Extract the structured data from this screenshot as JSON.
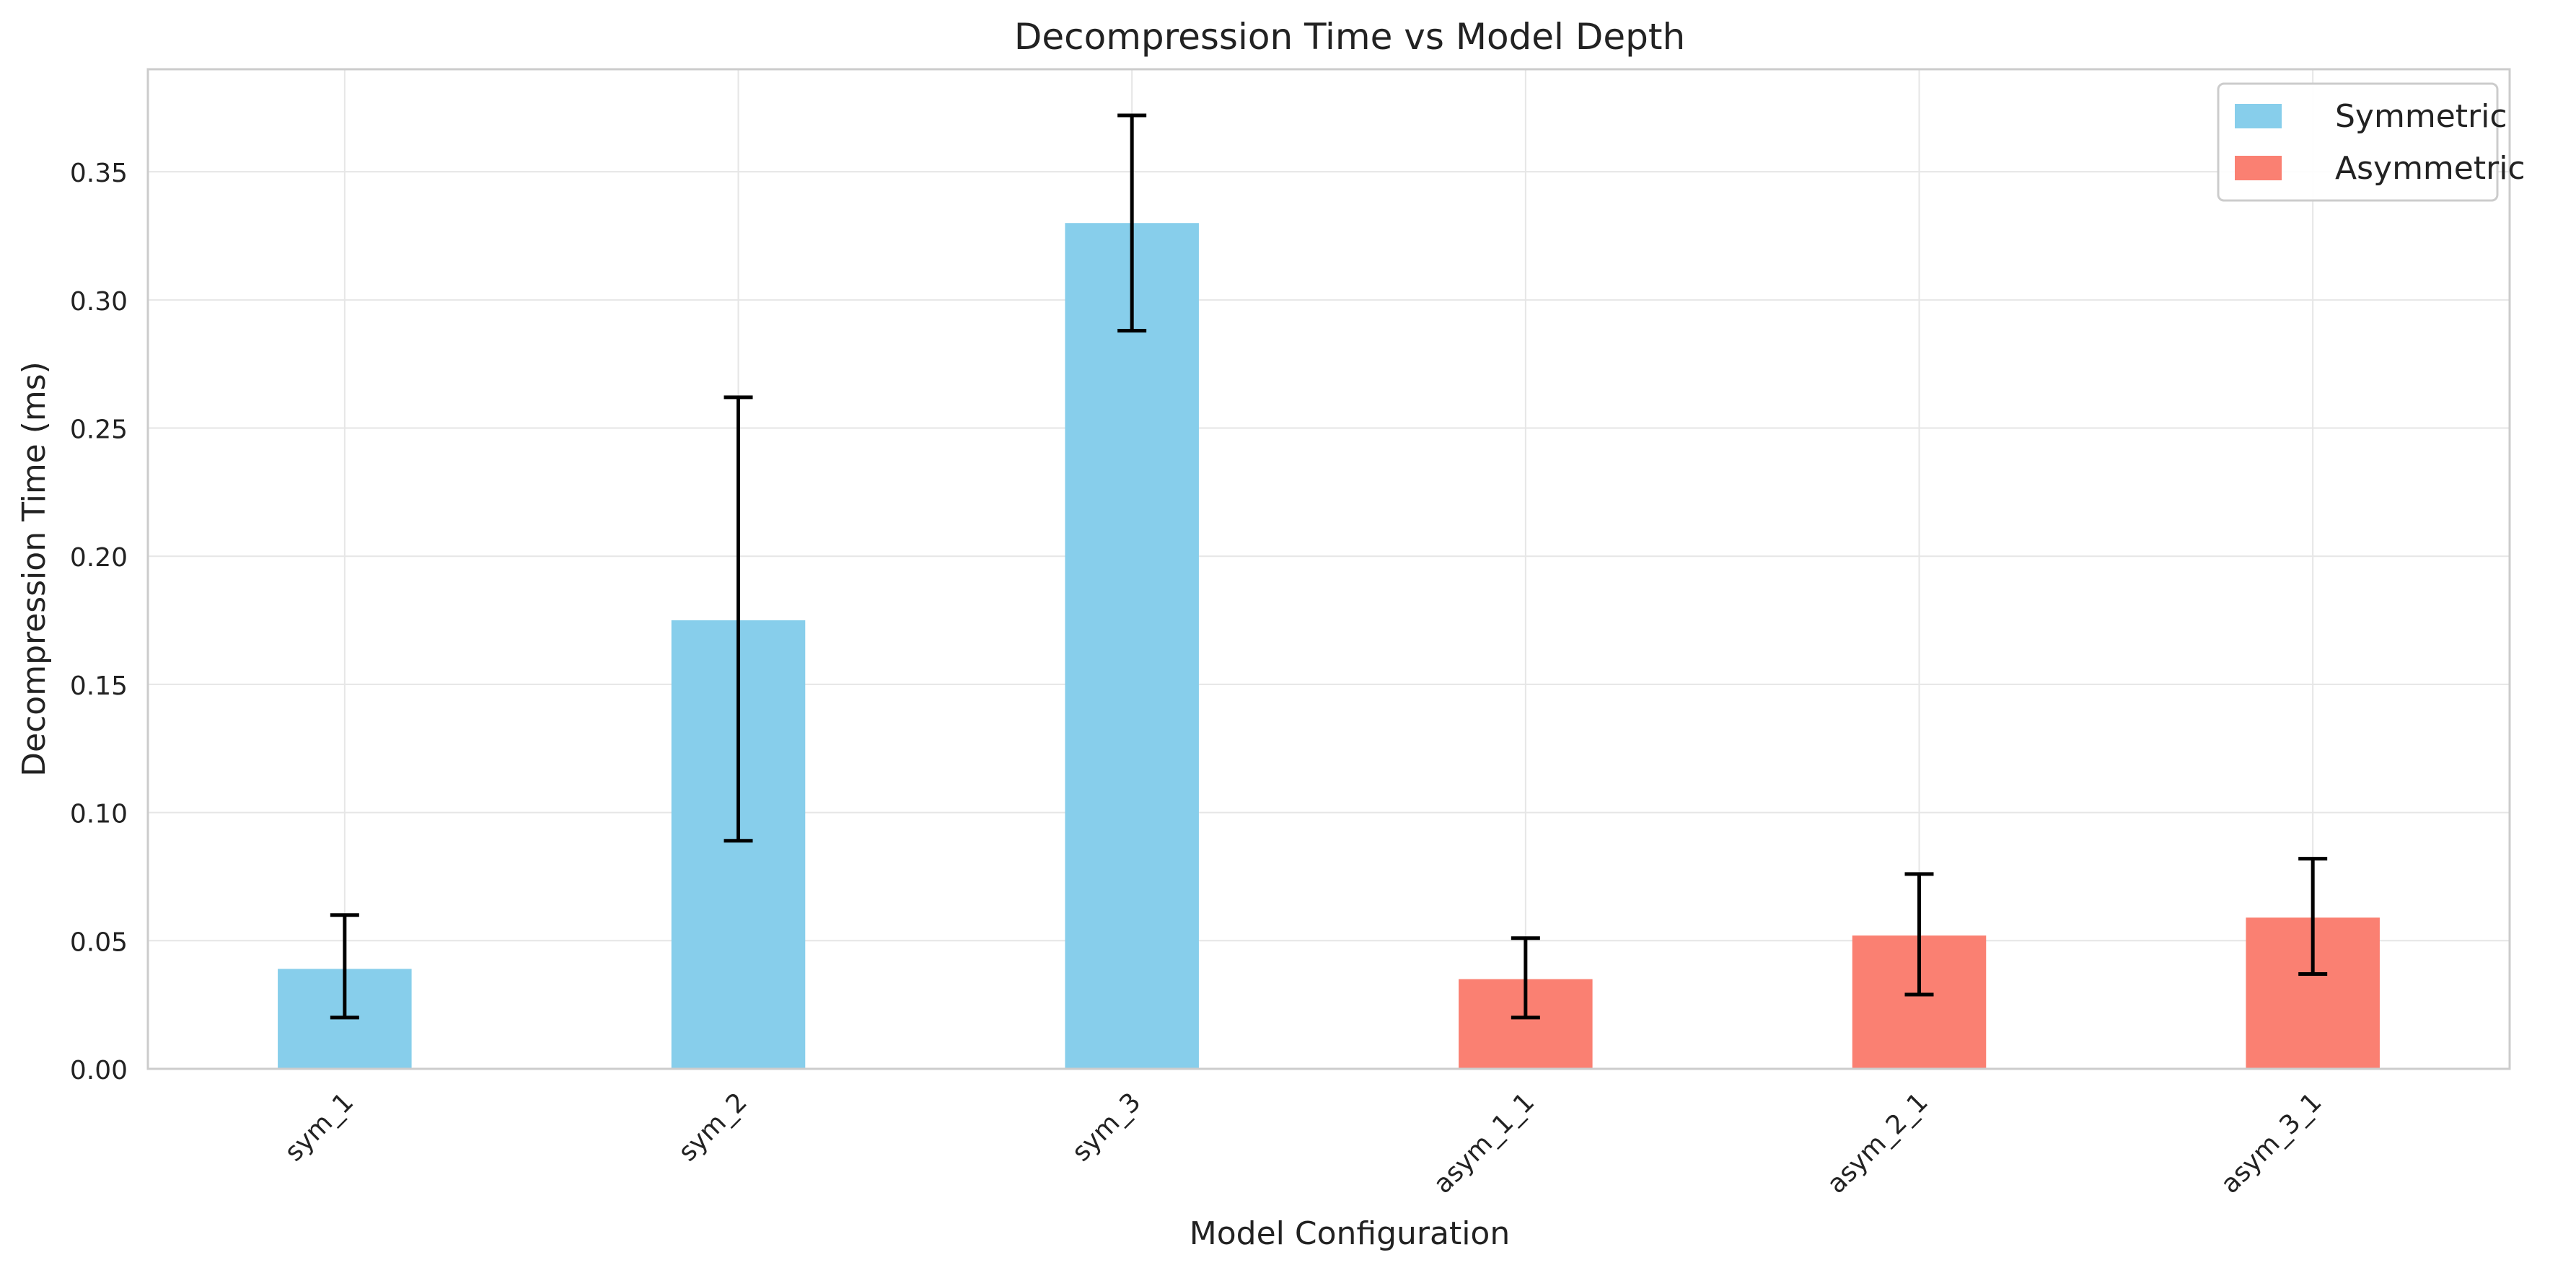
{
  "chart_data": {
    "type": "bar",
    "title": "Decompression Time vs Model Depth",
    "xlabel": "Model Configuration",
    "ylabel": "Decompression Time (ms)",
    "categories": [
      "sym_1",
      "sym_2",
      "sym_3",
      "asym_1_1",
      "asym_2_1",
      "asym_3_1"
    ],
    "values": [
      0.039,
      0.175,
      0.33,
      0.035,
      0.052,
      0.059
    ],
    "error_low": [
      0.02,
      0.089,
      0.288,
      0.02,
      0.029,
      0.037
    ],
    "error_high": [
      0.06,
      0.262,
      0.372,
      0.051,
      0.076,
      0.082
    ],
    "bar_groups": [
      "Symmetric",
      "Symmetric",
      "Symmetric",
      "Asymmetric",
      "Asymmetric",
      "Asymmetric"
    ],
    "legend": [
      {
        "name": "Symmetric",
        "color": "#87CEEB"
      },
      {
        "name": "Asymmetric",
        "color": "#FA8072"
      }
    ],
    "legend_position": "top-right",
    "ylim": [
      0,
      0.39
    ],
    "yticks": [
      0.0,
      0.05,
      0.1,
      0.15,
      0.2,
      0.25,
      0.3,
      0.35
    ],
    "ytick_labels": [
      "0.00",
      "0.05",
      "0.10",
      "0.15",
      "0.20",
      "0.25",
      "0.30",
      "0.35"
    ],
    "grid": true,
    "colors": {
      "grid": "#e6e6e6",
      "axes_border": "#cccccc",
      "error_bar": "#000000"
    }
  }
}
